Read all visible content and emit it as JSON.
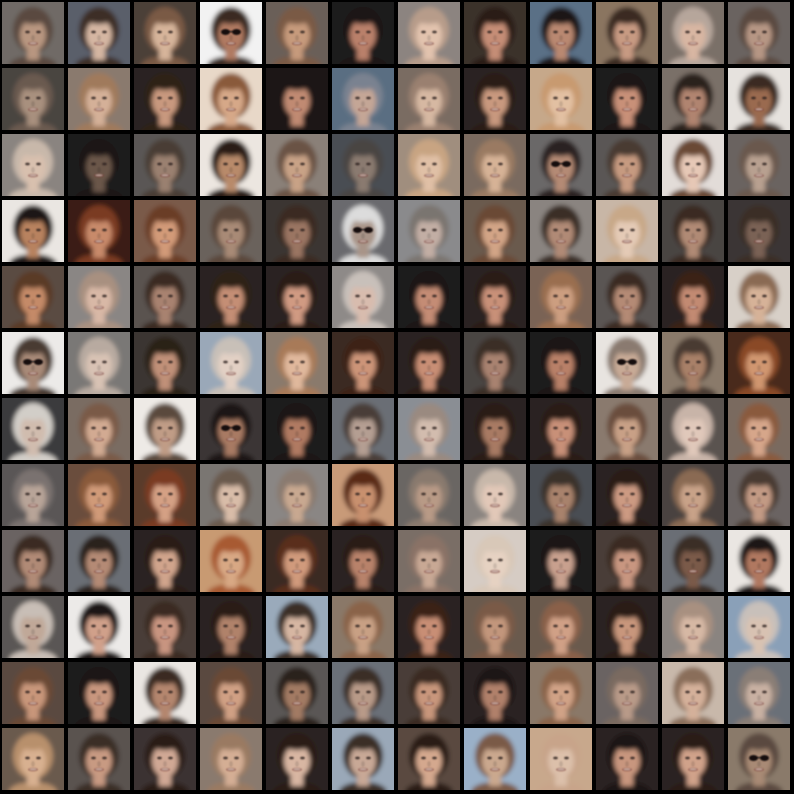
{
  "grid": {
    "rows": 12,
    "columns": 12,
    "description_kind": "generated face samples",
    "samples": [
      {
        "bg": "#6f6a66",
        "hair": "#5a4a40",
        "skin": "#b89680",
        "glasses": false
      },
      {
        "bg": "#5a5f6a",
        "hair": "#3e2e26",
        "skin": "#d4b6a2",
        "glasses": false
      },
      {
        "bg": "#4b3f37",
        "hair": "#7a5a45",
        "skin": "#d6b49a",
        "glasses": false
      },
      {
        "bg": "#f2f2f2",
        "hair": "#3a2a22",
        "skin": "#b07a62",
        "glasses": true
      },
      {
        "bg": "#6a5f58",
        "hair": "#7a5a44",
        "skin": "#c69a7c",
        "glasses": false
      },
      {
        "bg": "#1e1a1a",
        "hair": "#1a1414",
        "skin": "#b9806a",
        "glasses": false
      },
      {
        "bg": "#8c8480",
        "hair": "#b79c8a",
        "skin": "#e2c3ae",
        "glasses": false
      },
      {
        "bg": "#3a302c",
        "hair": "#2a1e18",
        "skin": "#c58d76",
        "glasses": false
      },
      {
        "bg": "#5a6f86",
        "hair": "#1e1616",
        "skin": "#b98871",
        "glasses": false
      },
      {
        "bg": "#8a7460",
        "hair": "#3a2a22",
        "skin": "#c79a82",
        "glasses": false
      },
      {
        "bg": "#7a6f68",
        "hair": "#b6a69b",
        "skin": "#d8b6a2",
        "glasses": false
      },
      {
        "bg": "#6a6460",
        "hair": "#5a4a40",
        "skin": "#b69684",
        "glasses": false
      },
      {
        "bg": "#4a4440",
        "hair": "#6a5a50",
        "skin": "#a8907e",
        "glasses": false
      },
      {
        "bg": "#8a7a6e",
        "hair": "#a07a5c",
        "skin": "#d4b098",
        "glasses": false
      },
      {
        "bg": "#2a2220",
        "hair": "#2e2018",
        "skin": "#c8987e",
        "glasses": false
      },
      {
        "bg": "#e8d8c8",
        "hair": "#8a5a3a",
        "skin": "#d6a888",
        "glasses": false
      },
      {
        "bg": "#1a1616",
        "hair": "#1e1616",
        "skin": "#c08a72",
        "glasses": false
      },
      {
        "bg": "#5a6e82",
        "hair": "#7a8290",
        "skin": "#c4a696",
        "glasses": false
      },
      {
        "bg": "#7a6c62",
        "hair": "#9a8070",
        "skin": "#d6b8a2",
        "glasses": false
      },
      {
        "bg": "#2a2220",
        "hair": "#2a1e18",
        "skin": "#c8987e",
        "glasses": false
      },
      {
        "bg": "#c6a88a",
        "hair": "#c89a70",
        "skin": "#e2c0a2",
        "glasses": false
      },
      {
        "bg": "#1e1a1a",
        "hair": "#1a1414",
        "skin": "#c89078",
        "glasses": false
      },
      {
        "bg": "#7a7068",
        "hair": "#2a201c",
        "skin": "#b08470",
        "glasses": false
      },
      {
        "bg": "#e6e2de",
        "hair": "#3a2a22",
        "skin": "#9a6a50",
        "glasses": false
      },
      {
        "bg": "#8a8480",
        "hair": "#c8b8aa",
        "skin": "#d8c0ae",
        "glasses": false
      },
      {
        "bg": "#1e1c1c",
        "hair": "#1a1616",
        "skin": "#6a564a",
        "glasses": false
      },
      {
        "bg": "#5a5654",
        "hair": "#4a3e36",
        "skin": "#9a8070",
        "glasses": false
      },
      {
        "bg": "#ece6e0",
        "hair": "#2a1e16",
        "skin": "#b88a6a",
        "glasses": false
      },
      {
        "bg": "#8a8078",
        "hair": "#6a5244",
        "skin": "#c8a286",
        "glasses": false
      },
      {
        "bg": "#4a4e52",
        "hair": "#4a4442",
        "skin": "#8a7a70",
        "glasses": false
      },
      {
        "bg": "#a08e7e",
        "hair": "#c8a482",
        "skin": "#e0c0a6",
        "glasses": false
      },
      {
        "bg": "#7a6a5e",
        "hair": "#9a7a62",
        "skin": "#d6b296",
        "glasses": false
      },
      {
        "bg": "#6a6868",
        "hair": "#2a2220",
        "skin": "#b48a74",
        "glasses": true
      },
      {
        "bg": "#5a5654",
        "hair": "#4a3a30",
        "skin": "#c69a80",
        "glasses": false
      },
      {
        "bg": "#e2dcd8",
        "hair": "#6a4a36",
        "skin": "#e6c8b6",
        "glasses": false
      },
      {
        "bg": "#6a6460",
        "hair": "#6a584e",
        "skin": "#b8a090",
        "glasses": false
      },
      {
        "bg": "#eae6e2",
        "hair": "#1e1612",
        "skin": "#b8825e",
        "glasses": false
      },
      {
        "bg": "#3a1e12",
        "hair": "#7a3a20",
        "skin": "#c88a6a",
        "glasses": false
      },
      {
        "bg": "#7a5a48",
        "hair": "#6a3e26",
        "skin": "#d29a78",
        "glasses": false
      },
      {
        "bg": "#6a625c",
        "hair": "#5a463a",
        "skin": "#a88a76",
        "glasses": false
      },
      {
        "bg": "#3a3432",
        "hair": "#3a2c24",
        "skin": "#9a7462",
        "glasses": false
      },
      {
        "bg": "#6a6a6e",
        "hair": "#dcdcdc",
        "skin": "#a89488",
        "glasses": true
      },
      {
        "bg": "#8a8a8c",
        "hair": "#7a7470",
        "skin": "#c2aea4",
        "glasses": false
      },
      {
        "bg": "#6a5a4e",
        "hair": "#6a4a34",
        "skin": "#d2a486",
        "glasses": false
      },
      {
        "bg": "#8a8480",
        "hair": "#3a2e28",
        "skin": "#b08a76",
        "glasses": false
      },
      {
        "bg": "#c8b6a6",
        "hair": "#c8a888",
        "skin": "#e4cab6",
        "glasses": false
      },
      {
        "bg": "#4a4442",
        "hair": "#3a2c24",
        "skin": "#b08a74",
        "glasses": false
      },
      {
        "bg": "#3a3634",
        "hair": "#3a2e28",
        "skin": "#7a6254",
        "glasses": false
      },
      {
        "bg": "#5a4c42",
        "hair": "#5a3a26",
        "skin": "#c48a68",
        "glasses": false
      },
      {
        "bg": "#8a8684",
        "hair": "#a89080",
        "skin": "#d8b8a6",
        "glasses": false
      },
      {
        "bg": "#5a5250",
        "hair": "#3a2c24",
        "skin": "#a88270",
        "glasses": false
      },
      {
        "bg": "#2a2220",
        "hair": "#2e2018",
        "skin": "#c48e74",
        "glasses": false
      },
      {
        "bg": "#2a2422",
        "hair": "#2a1e18",
        "skin": "#d09a82",
        "glasses": false
      },
      {
        "bg": "#8e8a88",
        "hair": "#c8c0ba",
        "skin": "#d8bcae",
        "glasses": false
      },
      {
        "bg": "#1e1a1a",
        "hair": "#1a1414",
        "skin": "#c48c74",
        "glasses": false
      },
      {
        "bg": "#2a2220",
        "hair": "#2a1e18",
        "skin": "#c89078",
        "glasses": false
      },
      {
        "bg": "#7a6454",
        "hair": "#9a6e50",
        "skin": "#cc9e80",
        "glasses": false
      },
      {
        "bg": "#5a5452",
        "hair": "#3a2c24",
        "skin": "#b48a74",
        "glasses": false
      },
      {
        "bg": "#2a2220",
        "hair": "#3a2218",
        "skin": "#c28a72",
        "glasses": false
      },
      {
        "bg": "#d8d0c8",
        "hair": "#8a6a52",
        "skin": "#d6b298",
        "glasses": false
      },
      {
        "bg": "#eceae8",
        "hair": "#4a3a30",
        "skin": "#a88a78",
        "glasses": true
      },
      {
        "bg": "#7a7876",
        "hair": "#b8aaa0",
        "skin": "#d8c2b4",
        "glasses": false
      },
      {
        "bg": "#3a3432",
        "hair": "#2a2018",
        "skin": "#c09078",
        "glasses": false
      },
      {
        "bg": "#9aa8b8",
        "hair": "#c8c0b8",
        "skin": "#e2d0c4",
        "glasses": false
      },
      {
        "bg": "#8a7a6c",
        "hair": "#a87a58",
        "skin": "#e0b89c",
        "glasses": false
      },
      {
        "bg": "#3a2a22",
        "hair": "#3e2418",
        "skin": "#cc9478",
        "glasses": false
      },
      {
        "bg": "#2a2220",
        "hair": "#2a1e18",
        "skin": "#c88e74",
        "glasses": false
      },
      {
        "bg": "#4a4442",
        "hair": "#3a2e28",
        "skin": "#a88270",
        "glasses": false
      },
      {
        "bg": "#1e1a1a",
        "hair": "#1a1414",
        "skin": "#b88068",
        "glasses": false
      },
      {
        "bg": "#e8e4e0",
        "hair": "#8a7a70",
        "skin": "#c8aa96",
        "glasses": true
      },
      {
        "bg": "#8a7a6a",
        "hair": "#4a3a30",
        "skin": "#a88068",
        "glasses": false
      },
      {
        "bg": "#4a2a1a",
        "hair": "#8a4a28",
        "skin": "#d09670",
        "glasses": false
      },
      {
        "bg": "#3a3a3e",
        "hair": "#d2cec8",
        "skin": "#d0bcae",
        "glasses": false
      },
      {
        "bg": "#7a6c62",
        "hair": "#7a5a46",
        "skin": "#d2aa92",
        "glasses": false
      },
      {
        "bg": "#eeeae6",
        "hair": "#5a4a3e",
        "skin": "#c09c86",
        "glasses": false
      },
      {
        "bg": "#3a3634",
        "hair": "#1e1612",
        "skin": "#a87a64",
        "glasses": true
      },
      {
        "bg": "#1e1a1a",
        "hair": "#1a1414",
        "skin": "#b07a62",
        "glasses": false
      },
      {
        "bg": "#6a6e74",
        "hair": "#4a3e38",
        "skin": "#b49e92",
        "glasses": false
      },
      {
        "bg": "#8a8e94",
        "hair": "#9a8a80",
        "skin": "#d2bcae",
        "glasses": false
      },
      {
        "bg": "#2a2220",
        "hair": "#2a1e18",
        "skin": "#a87a64",
        "glasses": false
      },
      {
        "bg": "#2a2220",
        "hair": "#2a1e18",
        "skin": "#c89078",
        "glasses": false
      },
      {
        "bg": "#8a7a6e",
        "hair": "#6a4e3c",
        "skin": "#c8a086",
        "glasses": false
      },
      {
        "bg": "#5a5250",
        "hair": "#c8b4a8",
        "skin": "#e0c8ba",
        "glasses": false
      },
      {
        "bg": "#7a6a5e",
        "hair": "#8a5a3e",
        "skin": "#d6a68a",
        "glasses": false
      },
      {
        "bg": "#5a5656",
        "hair": "#7a7270",
        "skin": "#b8a498",
        "glasses": false
      },
      {
        "bg": "#6a4e3c",
        "hair": "#8a5a3a",
        "skin": "#d09a78",
        "glasses": false
      },
      {
        "bg": "#5a3a2a",
        "hair": "#7a3a20",
        "skin": "#d4a084",
        "glasses": false
      },
      {
        "bg": "#7a7672",
        "hair": "#6a5a4e",
        "skin": "#d8bca8",
        "glasses": false
      },
      {
        "bg": "#8a8684",
        "hair": "#8a7a70",
        "skin": "#c8a890",
        "glasses": false
      },
      {
        "bg": "#c89a78",
        "hair": "#5a2a18",
        "skin": "#c8906e",
        "glasses": false
      },
      {
        "bg": "#6a6664",
        "hair": "#8a7a6e",
        "skin": "#b89a86",
        "glasses": false
      },
      {
        "bg": "#8a8480",
        "hair": "#c8b8aa",
        "skin": "#e2c8b8",
        "glasses": false
      },
      {
        "bg": "#4a4e52",
        "hair": "#3a302a",
        "skin": "#a8826c",
        "glasses": false
      },
      {
        "bg": "#2a2220",
        "hair": "#2a1e18",
        "skin": "#cc9a82",
        "glasses": false
      },
      {
        "bg": "#4a4240",
        "hair": "#8a6a52",
        "skin": "#c8a288",
        "glasses": false
      },
      {
        "bg": "#6a6462",
        "hair": "#4a3a30",
        "skin": "#c29a84",
        "glasses": false
      },
      {
        "bg": "#6a6462",
        "hair": "#3a2a20",
        "skin": "#b08a76",
        "glasses": false
      },
      {
        "bg": "#6a6e74",
        "hair": "#2a201a",
        "skin": "#b48a74",
        "glasses": false
      },
      {
        "bg": "#2a2220",
        "hair": "#2a1e18",
        "skin": "#d0a48c",
        "glasses": false
      },
      {
        "bg": "#c89a72",
        "hair": "#a85a30",
        "skin": "#d8a884",
        "glasses": false
      },
      {
        "bg": "#3a2a22",
        "hair": "#5a2e1c",
        "skin": "#d09a7c",
        "glasses": false
      },
      {
        "bg": "#2a2220",
        "hair": "#2a1e18",
        "skin": "#b8826a",
        "glasses": false
      },
      {
        "bg": "#7a6e66",
        "hair": "#8a7266",
        "skin": "#c8a894",
        "glasses": false
      },
      {
        "bg": "#d6ccc4",
        "hair": "#d8c8b8",
        "skin": "#e6d2c2",
        "glasses": false
      },
      {
        "bg": "#1e1a1a",
        "hair": "#1a1414",
        "skin": "#c8a08e",
        "glasses": false
      },
      {
        "bg": "#4a3e38",
        "hair": "#3a2c24",
        "skin": "#c89680",
        "glasses": false
      },
      {
        "bg": "#6a6e74",
        "hair": "#3a2e28",
        "skin": "#7a5a48",
        "glasses": false
      },
      {
        "bg": "#eae6e2",
        "hair": "#1e1614",
        "skin": "#b07860",
        "glasses": false
      },
      {
        "bg": "#5a5654",
        "hair": "#c8beb6",
        "skin": "#c0a898",
        "glasses": false
      },
      {
        "bg": "#eceae8",
        "hair": "#1e1614",
        "skin": "#d0a08a",
        "glasses": false
      },
      {
        "bg": "#4a3e38",
        "hair": "#3a2a20",
        "skin": "#c89480",
        "glasses": false
      },
      {
        "bg": "#2a2220",
        "hair": "#2a1e18",
        "skin": "#b0826a",
        "glasses": false
      },
      {
        "bg": "#9aaabb",
        "hair": "#3a2e28",
        "skin": "#d6b6a2",
        "glasses": false
      },
      {
        "bg": "#8a7868",
        "hair": "#8a6448",
        "skin": "#c8a084",
        "glasses": false
      },
      {
        "bg": "#2a2220",
        "hair": "#3a2218",
        "skin": "#c88e74",
        "glasses": false
      },
      {
        "bg": "#6a5a4e",
        "hair": "#7a5a46",
        "skin": "#c2967c",
        "glasses": false
      },
      {
        "bg": "#6a5a4e",
        "hair": "#8a6048",
        "skin": "#d0a086",
        "glasses": false
      },
      {
        "bg": "#2a2220",
        "hair": "#2a1e18",
        "skin": "#c8967c",
        "glasses": false
      },
      {
        "bg": "#8a8480",
        "hair": "#a89080",
        "skin": "#d6b8a4",
        "glasses": false
      },
      {
        "bg": "#8aa0b8",
        "hair": "#c8c0ba",
        "skin": "#d8c2b2",
        "glasses": false
      },
      {
        "bg": "#5a4a40",
        "hair": "#6a4a36",
        "skin": "#c8967a",
        "glasses": false
      },
      {
        "bg": "#1e1a1a",
        "hair": "#1a1414",
        "skin": "#c8967e",
        "glasses": false
      },
      {
        "bg": "#eae6e2",
        "hair": "#3a2a20",
        "skin": "#b4866e",
        "glasses": false
      },
      {
        "bg": "#5a4a40",
        "hair": "#6a4a36",
        "skin": "#d0a084",
        "glasses": false
      },
      {
        "bg": "#5a5654",
        "hair": "#2a201a",
        "skin": "#a27a64",
        "glasses": false
      },
      {
        "bg": "#6a7078",
        "hair": "#3a2e28",
        "skin": "#b89a88",
        "glasses": false
      },
      {
        "bg": "#4a3e38",
        "hair": "#3a2a20",
        "skin": "#c8967c",
        "glasses": false
      },
      {
        "bg": "#2a2220",
        "hair": "#1a1414",
        "skin": "#b0806a",
        "glasses": false
      },
      {
        "bg": "#8a7868",
        "hair": "#8a6448",
        "skin": "#d0a286",
        "glasses": false
      },
      {
        "bg": "#6a6462",
        "hair": "#7a6a60",
        "skin": "#b89a88",
        "glasses": false
      },
      {
        "bg": "#c8b8aa",
        "hair": "#8a6e5a",
        "skin": "#d4b09a",
        "glasses": false
      },
      {
        "bg": "#6a7078",
        "hair": "#8a7e76",
        "skin": "#c8b0a2",
        "glasses": false
      },
      {
        "bg": "#6a5a4e",
        "hair": "#b8906c",
        "skin": "#d8b090",
        "glasses": false
      },
      {
        "bg": "#5a5250",
        "hair": "#3a2e28",
        "skin": "#c89a82",
        "glasses": false
      },
      {
        "bg": "#3a3230",
        "hair": "#2a1e18",
        "skin": "#d0a894",
        "glasses": false
      },
      {
        "bg": "#8a7a6e",
        "hair": "#9a7a62",
        "skin": "#d4ae94",
        "glasses": false
      },
      {
        "bg": "#2a2220",
        "hair": "#2a1e18",
        "skin": "#d8b6a2",
        "glasses": false
      },
      {
        "bg": "#9aa8b8",
        "hair": "#3a2e28",
        "skin": "#c8a896",
        "glasses": false
      },
      {
        "bg": "#5a4a40",
        "hair": "#2a1e18",
        "skin": "#d4a88e",
        "glasses": false
      },
      {
        "bg": "#9ab0c8",
        "hair": "#7a5a46",
        "skin": "#caa88e",
        "glasses": false
      },
      {
        "bg": "#c8a88c",
        "hair": "#c8a48a",
        "skin": "#dcc0aa",
        "glasses": false
      },
      {
        "bg": "#2a2220",
        "hair": "#1e1614",
        "skin": "#c8967e",
        "glasses": false
      },
      {
        "bg": "#2a2220",
        "hair": "#2a1e18",
        "skin": "#d0a28a",
        "glasses": false
      },
      {
        "bg": "#8a7a6a",
        "hair": "#5a4a40",
        "skin": "#a88a74",
        "glasses": true
      }
    ]
  }
}
